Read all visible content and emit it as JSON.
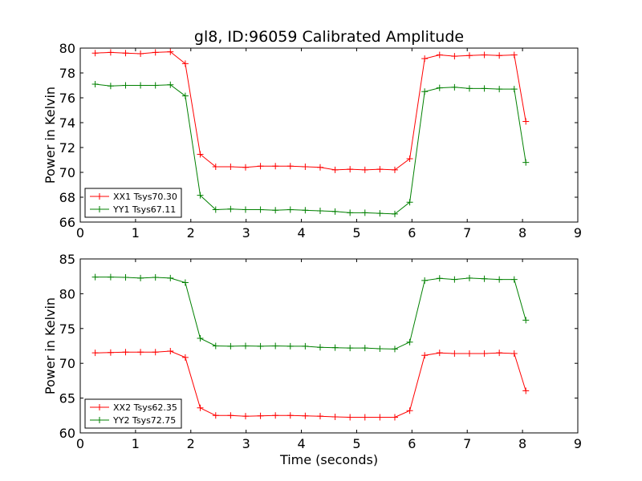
{
  "title": "gl8, ID:96059 Calibrated Amplitude",
  "chart_data": [
    {
      "type": "line",
      "title": "gl8, ID:96059 Calibrated Amplitude",
      "xlabel": "",
      "ylabel": "Power in Kelvin",
      "xlim": [
        0,
        9
      ],
      "ylim": [
        66,
        80
      ],
      "xticks": [
        "0",
        "1",
        "2",
        "3",
        "4",
        "5",
        "6",
        "7",
        "8",
        "9"
      ],
      "yticks": [
        "66",
        "68",
        "70",
        "72",
        "74",
        "76",
        "78",
        "80"
      ],
      "grid": false,
      "legend_position": "lower-left",
      "x": [
        0.27,
        0.55,
        0.82,
        1.09,
        1.36,
        1.63,
        1.9,
        2.17,
        2.45,
        2.72,
        2.99,
        3.26,
        3.53,
        3.8,
        4.07,
        4.34,
        4.61,
        4.88,
        5.15,
        5.42,
        5.69,
        5.96,
        6.23,
        6.5,
        6.77,
        7.04,
        7.31,
        7.58,
        7.85,
        8.06
      ],
      "series": [
        {
          "name": "XX1 Tsys70.30",
          "color": "#ff0000",
          "values": [
            79.6,
            79.65,
            79.6,
            79.55,
            79.65,
            79.7,
            78.75,
            71.45,
            70.45,
            70.45,
            70.4,
            70.5,
            70.5,
            70.5,
            70.45,
            70.4,
            70.2,
            70.25,
            70.2,
            70.25,
            70.2,
            71.1,
            79.15,
            79.45,
            79.35,
            79.4,
            79.45,
            79.4,
            79.45,
            74.1
          ]
        },
        {
          "name": "YY1 Tsys67.11",
          "color": "#008000",
          "values": [
            77.1,
            76.95,
            77.0,
            77.0,
            77.0,
            77.05,
            76.15,
            68.15,
            67.0,
            67.05,
            67.0,
            67.0,
            66.95,
            67.0,
            66.95,
            66.9,
            66.85,
            66.75,
            66.75,
            66.7,
            66.65,
            67.6,
            76.5,
            76.8,
            76.85,
            76.75,
            76.75,
            76.7,
            76.7,
            70.8
          ]
        }
      ]
    },
    {
      "type": "line",
      "title": "",
      "xlabel": "Time (seconds)",
      "ylabel": "Power in Kelvin",
      "xlim": [
        0,
        9
      ],
      "ylim": [
        60,
        85
      ],
      "xticks": [
        "0",
        "1",
        "2",
        "3",
        "4",
        "5",
        "6",
        "7",
        "8",
        "9"
      ],
      "yticks": [
        "60",
        "65",
        "70",
        "75",
        "80",
        "85"
      ],
      "grid": false,
      "legend_position": "lower-left",
      "x": [
        0.27,
        0.55,
        0.82,
        1.09,
        1.36,
        1.63,
        1.9,
        2.17,
        2.45,
        2.72,
        2.99,
        3.26,
        3.53,
        3.8,
        4.07,
        4.34,
        4.61,
        4.88,
        5.15,
        5.42,
        5.69,
        5.96,
        6.23,
        6.5,
        6.77,
        7.04,
        7.31,
        7.58,
        7.85,
        8.06
      ],
      "series": [
        {
          "name": "XX2 Tsys62.35",
          "color": "#ff0000",
          "values": [
            71.5,
            71.55,
            71.6,
            71.6,
            71.6,
            71.75,
            70.85,
            63.6,
            62.5,
            62.5,
            62.4,
            62.45,
            62.5,
            62.5,
            62.45,
            62.4,
            62.3,
            62.25,
            62.25,
            62.25,
            62.25,
            63.2,
            71.15,
            71.5,
            71.4,
            71.4,
            71.4,
            71.5,
            71.4,
            66.05
          ]
        },
        {
          "name": "YY2 Tsys72.75",
          "color": "#008000",
          "values": [
            82.4,
            82.4,
            82.35,
            82.25,
            82.35,
            82.25,
            81.6,
            73.6,
            72.5,
            72.45,
            72.5,
            72.45,
            72.5,
            72.45,
            72.45,
            72.3,
            72.25,
            72.2,
            72.2,
            72.1,
            72.05,
            73.05,
            81.9,
            82.2,
            82.05,
            82.25,
            82.15,
            82.05,
            82.05,
            76.2
          ]
        }
      ]
    }
  ]
}
